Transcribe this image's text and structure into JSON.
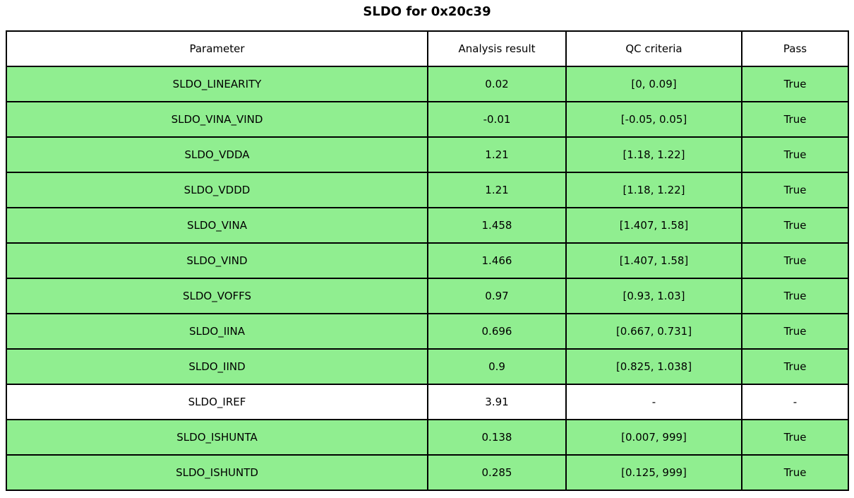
{
  "title": "SLDO for 0x20c39",
  "colors": {
    "pass_row_bg": "#90EE90",
    "neutral_row_bg": "#FFFFFF",
    "border": "#000000",
    "text": "#000000"
  },
  "chart_data": {
    "type": "table",
    "title": "SLDO for 0x20c39",
    "headers": [
      "Parameter",
      "Analysis result",
      "QC criteria",
      "Pass"
    ],
    "rows": [
      {
        "parameter": "SLDO_LINEARITY",
        "result": "0.02",
        "criteria": "[0, 0.09]",
        "pass": "True"
      },
      {
        "parameter": "SLDO_VINA_VIND",
        "result": "-0.01",
        "criteria": "[-0.05, 0.05]",
        "pass": "True"
      },
      {
        "parameter": "SLDO_VDDA",
        "result": "1.21",
        "criteria": "[1.18, 1.22]",
        "pass": "True"
      },
      {
        "parameter": "SLDO_VDDD",
        "result": "1.21",
        "criteria": "[1.18, 1.22]",
        "pass": "True"
      },
      {
        "parameter": "SLDO_VINA",
        "result": "1.458",
        "criteria": "[1.407, 1.58]",
        "pass": "True"
      },
      {
        "parameter": "SLDO_VIND",
        "result": "1.466",
        "criteria": "[1.407, 1.58]",
        "pass": "True"
      },
      {
        "parameter": "SLDO_VOFFS",
        "result": "0.97",
        "criteria": "[0.93, 1.03]",
        "pass": "True"
      },
      {
        "parameter": "SLDO_IINA",
        "result": "0.696",
        "criteria": "[0.667, 0.731]",
        "pass": "True"
      },
      {
        "parameter": "SLDO_IIND",
        "result": "0.9",
        "criteria": "[0.825, 1.038]",
        "pass": "True"
      },
      {
        "parameter": "SLDO_IREF",
        "result": "3.91",
        "criteria": "-",
        "pass": "-"
      },
      {
        "parameter": "SLDO_ISHUNTA",
        "result": "0.138",
        "criteria": "[0.007, 999]",
        "pass": "True"
      },
      {
        "parameter": "SLDO_ISHUNTD",
        "result": "0.285",
        "criteria": "[0.125, 999]",
        "pass": "True"
      }
    ]
  }
}
